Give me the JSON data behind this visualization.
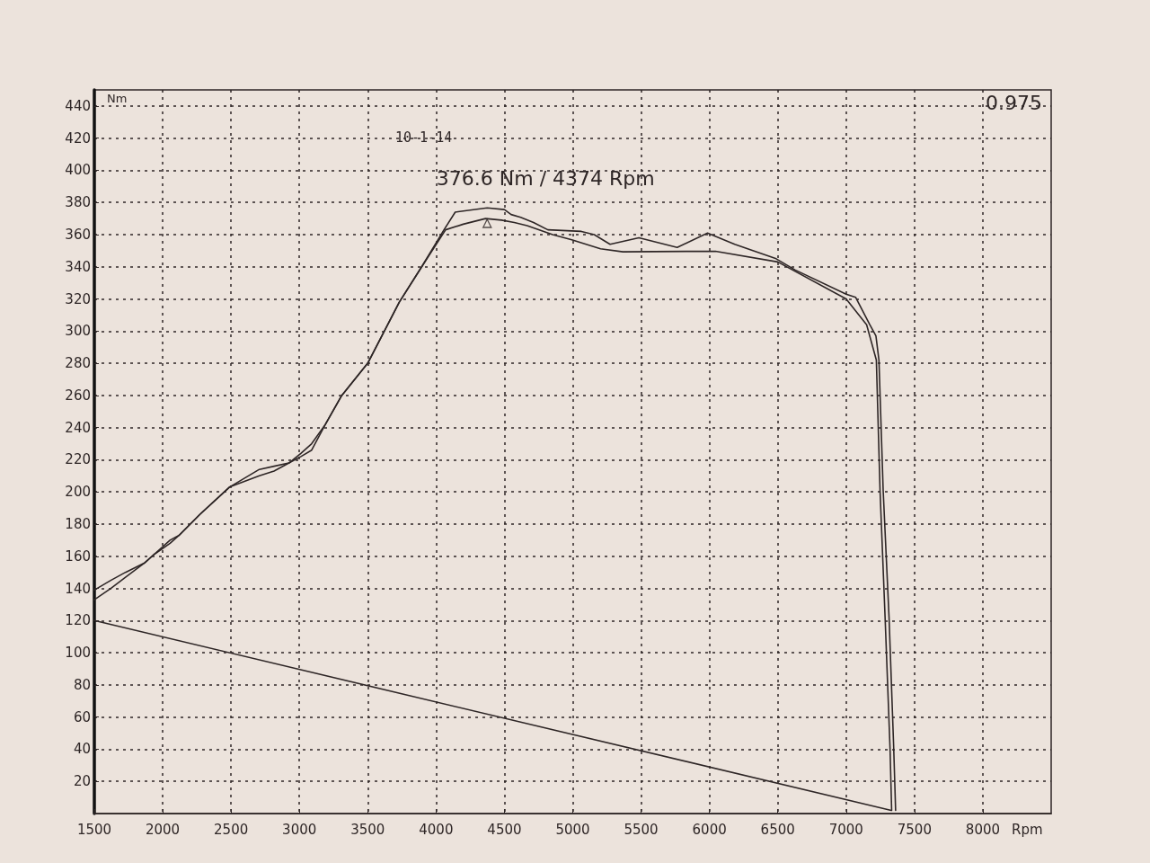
{
  "chart_data": {
    "type": "line",
    "xlabel": "Rpm",
    "ylabel": "Nm",
    "annotations": [
      "10-1-14",
      "0.975",
      {
        "text": "376.6 Nm / 4374 Rpm",
        "x": 4374,
        "y": 376.6
      }
    ],
    "xlim": [
      1500,
      8500
    ],
    "xticks": [
      1500,
      2000,
      2500,
      3000,
      3500,
      4000,
      4500,
      5000,
      5500,
      6000,
      6500,
      7000,
      7500,
      8000
    ],
    "ylim": [
      0,
      450
    ],
    "yticks": [
      20,
      40,
      60,
      80,
      100,
      120,
      140,
      160,
      180,
      200,
      220,
      240,
      260,
      280,
      300,
      320,
      340,
      360,
      380,
      400,
      420,
      440
    ],
    "grid": true,
    "marker": "none",
    "line_style": "solid",
    "series": [
      {
        "color": "#2e2626",
        "x": [
          1500,
          1620,
          1728,
          1870,
          1935,
          2054,
          2120,
          2272,
          2489,
          2707,
          2815,
          2924,
          3011,
          3090,
          3190,
          3310,
          3500,
          3731,
          3895,
          4058,
          4140,
          4374,
          4500,
          4549,
          4619,
          4713,
          4818,
          5063,
          5157,
          5273,
          5484,
          5764,
          5986,
          6185,
          6488,
          6628,
          7000,
          7070,
          7173,
          7218,
          7240,
          7271,
          7314,
          7348,
          7362
        ],
        "values": [
          139,
          145,
          150,
          156,
          161,
          170,
          173,
          186,
          203,
          214,
          216,
          218,
          224,
          230,
          242,
          260,
          280,
          318,
          340,
          363,
          374,
          376.6,
          375.6,
          372.5,
          370.7,
          367.5,
          363,
          362,
          360,
          354,
          358,
          352,
          361,
          354,
          345,
          338,
          323,
          321,
          304,
          297,
          282,
          201,
          122,
          41,
          2
        ]
      },
      {
        "color": "#2e2626",
        "x": [
          1500,
          1620,
          1728,
          1870,
          1935,
          2054,
          2120,
          2272,
          2489,
          2707,
          2815,
          2924,
          3011,
          3090,
          3190,
          3310,
          3500,
          3731,
          3895,
          4070,
          4199,
          4362,
          4479,
          4572,
          4666,
          4853,
          4993,
          5203,
          5367,
          6044,
          6500,
          7000,
          7150,
          7221,
          7248,
          7285,
          7321,
          7333
        ],
        "values": [
          133,
          140,
          147,
          156,
          161,
          168,
          173,
          186,
          203,
          210,
          213,
          218,
          222,
          226,
          242,
          260,
          280,
          318,
          340,
          363,
          366.5,
          370,
          369,
          367.5,
          365.6,
          360,
          356.8,
          351.2,
          349.3,
          349.7,
          343,
          320,
          304,
          282,
          201,
          122,
          41,
          2
        ]
      },
      {
        "color": "#2e2626",
        "x": [
          1500,
          7330
        ],
        "values": [
          120,
          2
        ]
      },
      {
        "type": "scatter",
        "marker": "triangle",
        "color": "#2e2626",
        "x": [
          4374
        ],
        "values": [
          367
        ]
      }
    ]
  }
}
